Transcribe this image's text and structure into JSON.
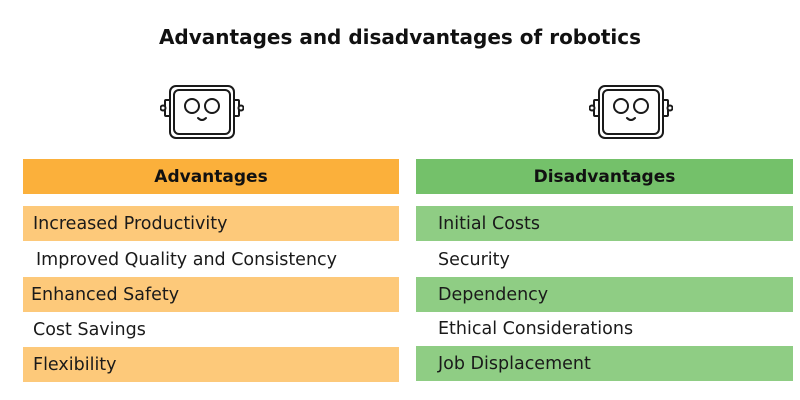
{
  "title": "Advantages and disadvantages of robotics",
  "colors": {
    "advantages_header": "#fbb03b",
    "advantages_row": "#fdc97a",
    "disadvantages_header": "#74c16a",
    "disadvantages_row": "#8fcd84"
  },
  "icons": {
    "left": "robot-head-icon",
    "right": "robot-head-icon"
  },
  "advantages": {
    "header": "Advantages",
    "items": [
      "Increased Productivity",
      "Improved Quality and Consistency",
      "Enhanced Safety",
      "Cost Savings",
      "Flexibility"
    ]
  },
  "disadvantages": {
    "header": "Disadvantages",
    "items": [
      "Initial Costs",
      "Security",
      "Dependency",
      "Ethical Considerations",
      "Job Displacement"
    ]
  }
}
